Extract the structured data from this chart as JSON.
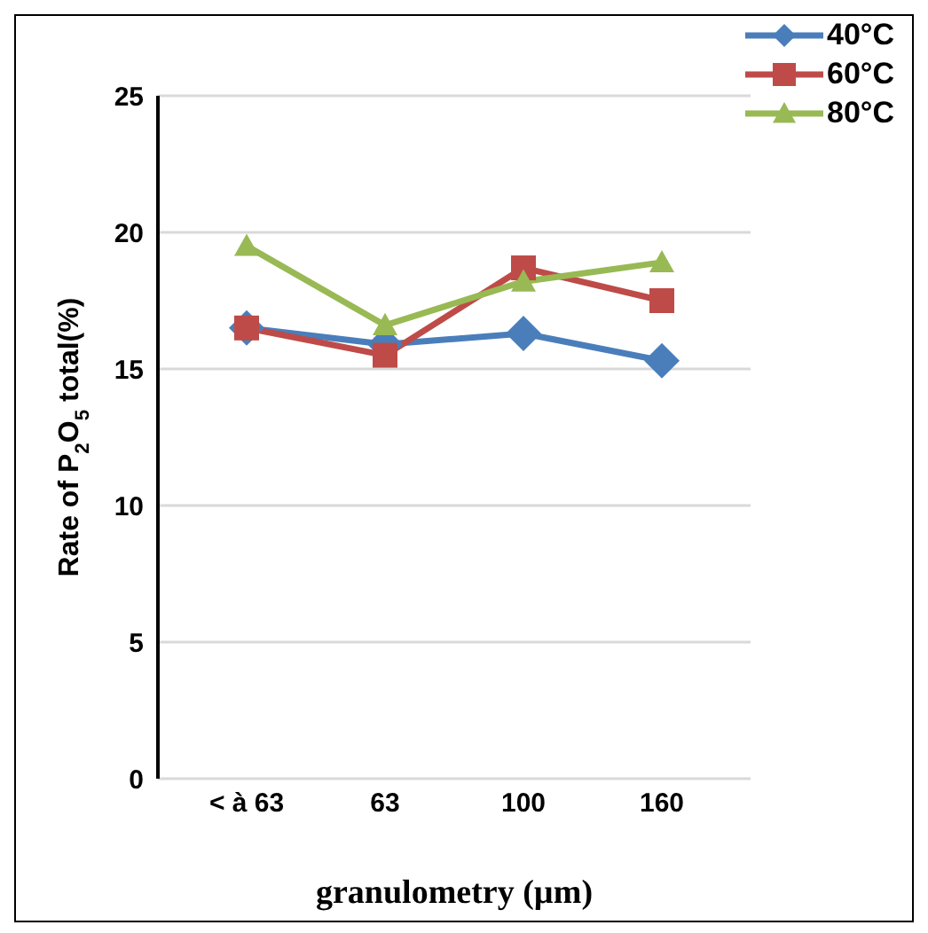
{
  "chart_data": {
    "type": "line",
    "xlabel": "granulometry (µm)",
    "ylabel": "Rate of P$_{2}$O$_{5}$ total(%)",
    "categories": [
      "< à 63",
      "63",
      "100",
      "160"
    ],
    "series": [
      {
        "name": "40°C",
        "color": "#4a7ebb",
        "marker": "diamond",
        "values": [
          16.5,
          15.9,
          16.3,
          15.3
        ]
      },
      {
        "name": "60°C",
        "color": "#be4b48",
        "marker": "square",
        "values": [
          16.5,
          15.5,
          18.7,
          17.5
        ]
      },
      {
        "name": "80°C",
        "color": "#98b954",
        "marker": "triangle",
        "values": [
          19.5,
          16.6,
          18.2,
          18.9
        ]
      }
    ],
    "ylim": [
      0,
      25
    ],
    "yticks": [
      0,
      5,
      10,
      15,
      20,
      25
    ],
    "grid": "y",
    "legend": "top right"
  }
}
